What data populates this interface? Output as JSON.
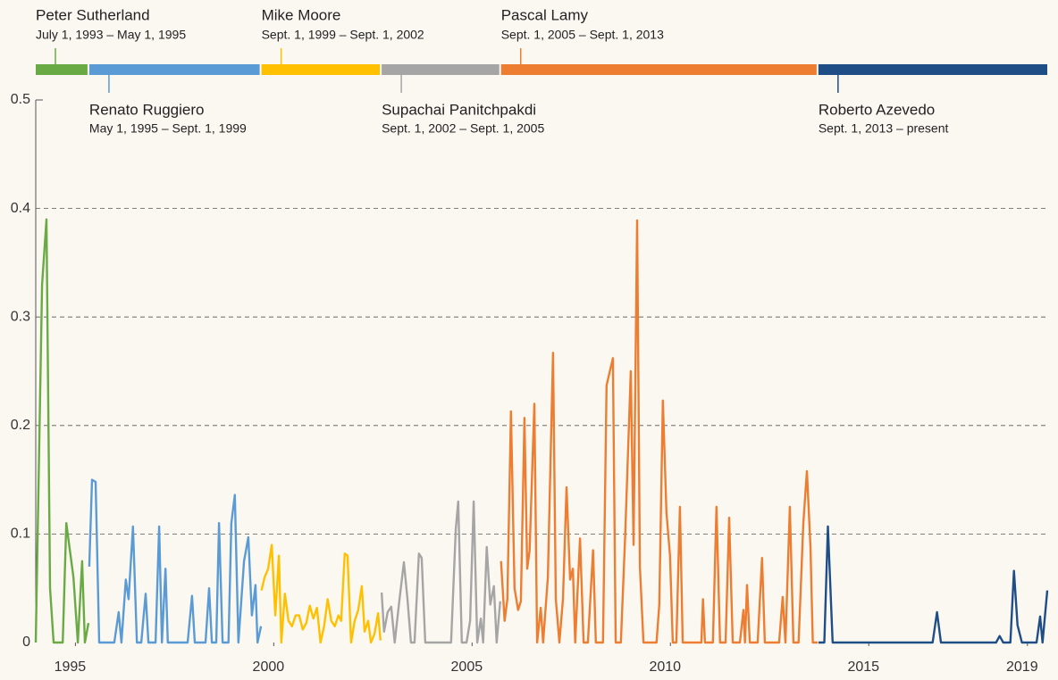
{
  "chart_data": {
    "type": "line",
    "xlim": [
      1994,
      2019.5
    ],
    "xticks": [
      1995,
      2000,
      2005,
      2010,
      2015,
      2019
    ],
    "ylim": [
      0,
      0.5
    ],
    "yticks": [
      0,
      0.1,
      0.2,
      0.3,
      0.4,
      0.5
    ],
    "grid": true,
    "series": [
      {
        "name": "Peter Sutherland",
        "dates": "July 1, 1993 – May 1, 1995",
        "color": "#6aaa45",
        "x": [
          1994.0,
          1994.16,
          1994.27,
          1994.36,
          1994.45,
          1994.68,
          1994.77,
          1994.95,
          1995.06,
          1995.17,
          1995.24,
          1995.33
        ],
        "values": [
          0,
          0.33,
          0.39,
          0.05,
          0,
          0,
          0.11,
          0.06,
          0,
          0.075,
          0,
          0.018
        ]
      },
      {
        "name": "Renato Ruggiero",
        "dates": "May 1, 1995 – Sept. 1, 1999",
        "color": "#5b9bd5",
        "x": [
          1995.35,
          1995.42,
          1995.51,
          1995.6,
          1995.98,
          1996.09,
          1996.16,
          1996.27,
          1996.34,
          1996.45,
          1996.55,
          1996.66,
          1996.77,
          1996.84,
          1997.02,
          1997.11,
          1997.18,
          1997.27,
          1997.33,
          1997.83,
          1997.94,
          1998.01,
          1998.28,
          1998.37,
          1998.44,
          1998.55,
          1998.62,
          1998.71,
          1998.86,
          1998.93,
          1999.02,
          1999.11,
          1999.25,
          1999.36,
          1999.45,
          1999.54,
          1999.59,
          1999.68
        ],
        "values": [
          0.07,
          0.15,
          0.148,
          0,
          0,
          0.028,
          0,
          0.058,
          0.04,
          0.107,
          0,
          0,
          0.045,
          0,
          0,
          0.107,
          0,
          0.068,
          0,
          0,
          0.043,
          0,
          0,
          0.05,
          0,
          0,
          0.11,
          0,
          0,
          0.11,
          0.136,
          0,
          0.075,
          0.097,
          0.025,
          0.053,
          0,
          0.015
        ]
      },
      {
        "name": "Mike Moore",
        "dates": "Sept. 1, 1999 – Sept. 1, 2002",
        "color": "#ffc000",
        "x": [
          1999.69,
          1999.77,
          1999.86,
          1999.95,
          2000.04,
          2000.13,
          2000.19,
          2000.28,
          2000.37,
          2000.46,
          2000.55,
          2000.64,
          2000.73,
          2000.82,
          2000.91,
          2001.0,
          2001.09,
          2001.18,
          2001.27,
          2001.36,
          2001.45,
          2001.54,
          2001.63,
          2001.7,
          2001.79,
          2001.86,
          2001.95,
          2002.04,
          2002.13,
          2002.22,
          2002.29,
          2002.38,
          2002.45,
          2002.54,
          2002.63,
          2002.69
        ],
        "values": [
          0.048,
          0.06,
          0.068,
          0.09,
          0.025,
          0.08,
          0,
          0.045,
          0.02,
          0.015,
          0.025,
          0.025,
          0.012,
          0.018,
          0.034,
          0.022,
          0.032,
          0,
          0.015,
          0.04,
          0.02,
          0.015,
          0.025,
          0.02,
          0.082,
          0.08,
          0,
          0.02,
          0.03,
          0.052,
          0.01,
          0.02,
          0,
          0.008,
          0.027,
          0.002
        ]
      },
      {
        "name": "Supachai Panitchpakdi",
        "dates": "Sept. 1, 2002 – Sept. 1, 2005",
        "color": "#a5a5a5",
        "x": [
          2002.72,
          2002.78,
          2002.87,
          2002.96,
          2003.05,
          2003.17,
          2003.28,
          2003.37,
          2003.46,
          2003.55,
          2003.66,
          2003.73,
          2003.82,
          2004.14,
          2004.47,
          2004.59,
          2004.65,
          2004.74,
          2004.86,
          2004.95,
          2005.04,
          2005.13,
          2005.22,
          2005.28,
          2005.37,
          2005.46,
          2005.55,
          2005.62,
          2005.71
        ],
        "values": [
          0.046,
          0.01,
          0.028,
          0.033,
          0,
          0.04,
          0.074,
          0.04,
          0,
          0,
          0.082,
          0.078,
          0,
          0,
          0,
          0.105,
          0.13,
          0,
          0,
          0.02,
          0.13,
          0,
          0.022,
          0,
          0.088,
          0.035,
          0.052,
          0,
          0.038
        ]
      },
      {
        "name": "Pascal Lamy",
        "dates": "Sept. 1, 2005 – Sept. 1, 2013",
        "color": "#ed7d31",
        "x": [
          2005.73,
          2005.82,
          2005.89,
          2005.98,
          2006.07,
          2006.16,
          2006.23,
          2006.32,
          2006.39,
          2006.45,
          2006.57,
          2006.64,
          2006.73,
          2006.79,
          2006.91,
          2007.04,
          2007.11,
          2007.2,
          2007.29,
          2007.38,
          2007.47,
          2007.54,
          2007.6,
          2007.72,
          2007.81,
          2007.92,
          2008.05,
          2008.12,
          2008.3,
          2008.39,
          2008.55,
          2008.62,
          2008.75,
          2008.86,
          2009.0,
          2009.07,
          2009.16,
          2009.23,
          2009.32,
          2009.65,
          2009.72,
          2009.81,
          2009.9,
          2009.99,
          2010.06,
          2010.15,
          2010.24,
          2010.31,
          2010.78,
          2010.82,
          2010.87,
          2011.07,
          2011.16,
          2011.25,
          2011.39,
          2011.48,
          2011.57,
          2011.75,
          2011.84,
          2011.88,
          2011.93,
          2012.0,
          2012.2,
          2012.31,
          2012.38,
          2012.74,
          2012.83,
          2012.9,
          2013.01,
          2013.1,
          2013.23,
          2013.35,
          2013.44,
          2013.53,
          2013.59,
          2013.71
        ],
        "values": [
          0.075,
          0.02,
          0.04,
          0.213,
          0.05,
          0.03,
          0.038,
          0.207,
          0.068,
          0.085,
          0.22,
          0,
          0.032,
          0,
          0.06,
          0.267,
          0.04,
          0,
          0.04,
          0.143,
          0.058,
          0.068,
          0,
          0.096,
          0,
          0,
          0.085,
          0,
          0,
          0.237,
          0.262,
          0,
          0,
          0.1,
          0.25,
          0.09,
          0.389,
          0.07,
          0,
          0,
          0.035,
          0.223,
          0.12,
          0.08,
          0,
          0,
          0.125,
          0,
          0,
          0.04,
          0,
          0,
          0.125,
          0,
          0,
          0.115,
          0,
          0,
          0.03,
          0,
          0.053,
          0,
          0,
          0.078,
          0,
          0,
          0.042,
          0,
          0.125,
          0,
          0,
          0.11,
          0.158,
          0.088,
          0,
          0
        ]
      },
      {
        "name": "Roberto Azevedo",
        "dates": "Sept. 1, 2013 – present",
        "color": "#1f4e87",
        "x": [
          2013.73,
          2013.88,
          2013.97,
          2014.09,
          2016.61,
          2016.72,
          2016.82,
          2018.21,
          2018.3,
          2018.39,
          2018.57,
          2018.66,
          2018.75,
          2018.86,
          2019.23,
          2019.32,
          2019.38,
          2019.5
        ],
        "values": [
          0,
          0,
          0.107,
          0,
          0,
          0.028,
          0,
          0,
          0.006,
          0,
          0,
          0.066,
          0.016,
          0,
          0,
          0.024,
          0,
          0.048
        ]
      }
    ]
  }
}
